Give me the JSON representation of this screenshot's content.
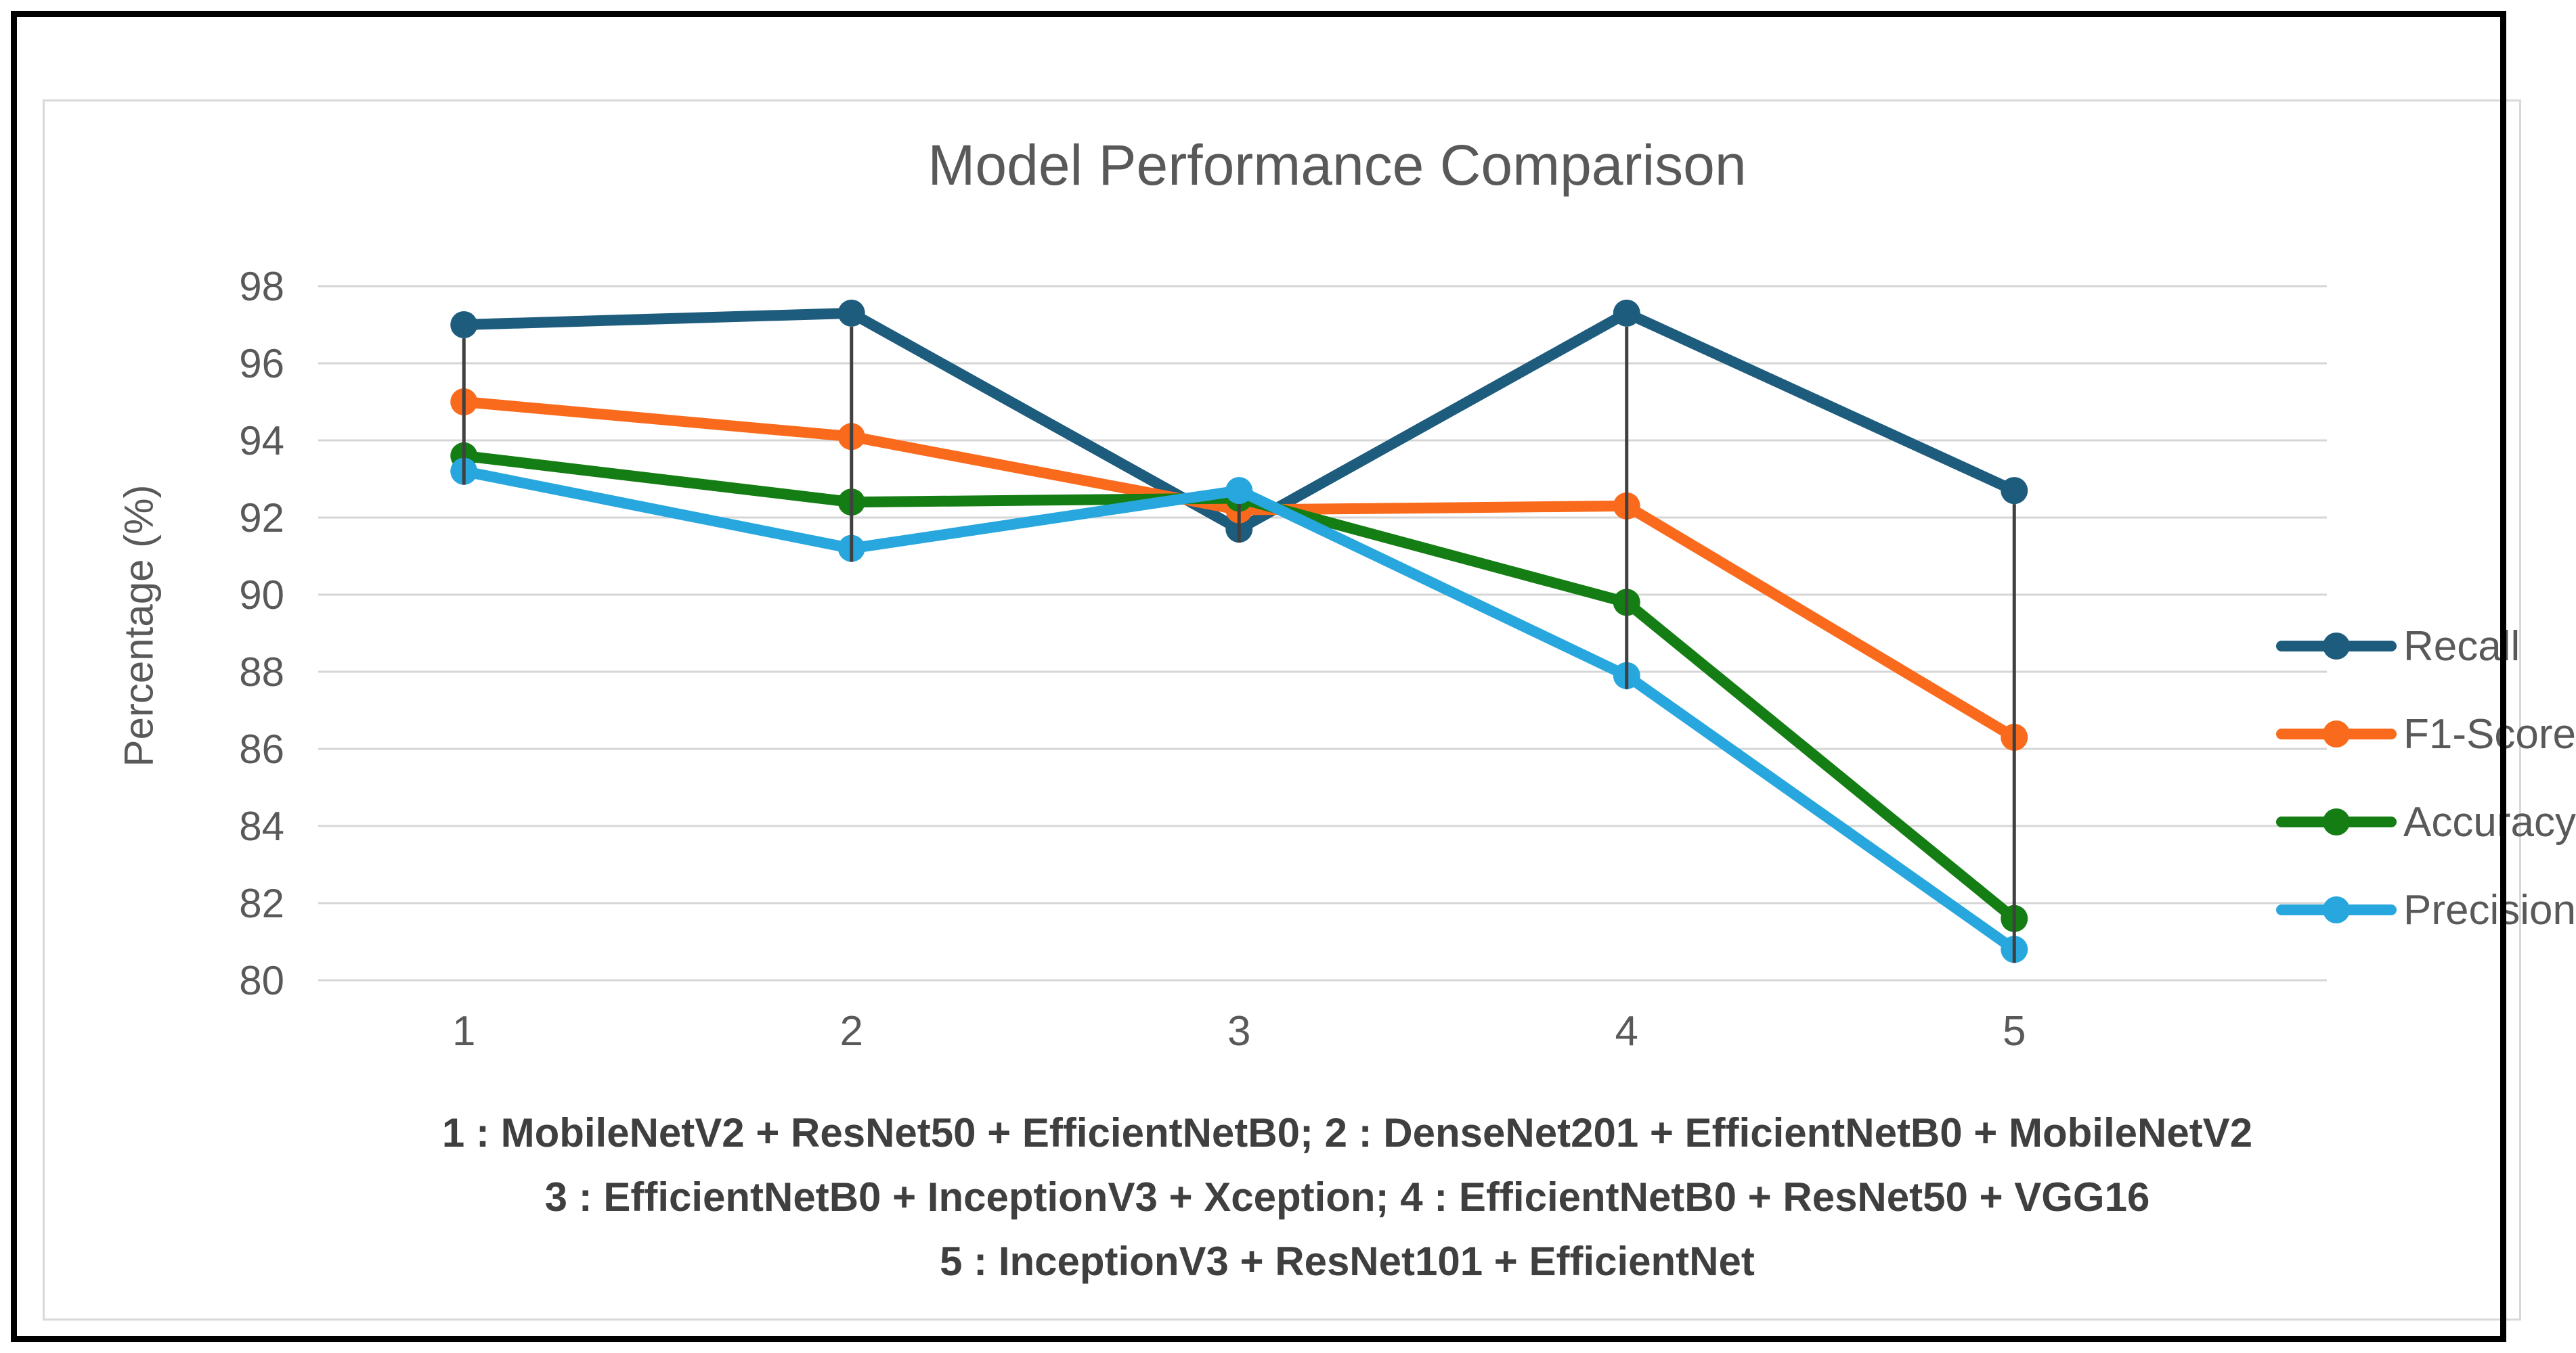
{
  "figure": {
    "title": "Model Performance Comparison",
    "y_axis_title": "Percentage (%)",
    "footnote_lines": [
      "1 : MobileNetV2 + ResNet50 + EfficientNetB0;  2 : DenseNet201 + EfficientNetB0 + MobileNetV2",
      "3 : EfficientNetB0 + InceptionV3 + Xception;  4 : EfficientNetB0 + ResNet50 + VGG16",
      "5 : InceptionV3 + ResNet101 + EfficientNet"
    ]
  },
  "chart_data": {
    "type": "line",
    "title": "Model Performance Comparison",
    "xlabel": "",
    "ylabel": "Percentage (%)",
    "categories": [
      "1",
      "2",
      "3",
      "4",
      "5"
    ],
    "series": [
      {
        "name": "Recall",
        "color": "#1E5C7D",
        "values": [
          97.0,
          97.3,
          91.7,
          97.3,
          92.7
        ]
      },
      {
        "name": "F1-Score",
        "color": "#FA6A1C",
        "values": [
          95.0,
          94.1,
          92.2,
          92.3,
          86.3
        ]
      },
      {
        "name": "Accuracy",
        "color": "#147D14",
        "values": [
          93.6,
          92.4,
          92.5,
          89.8,
          81.6
        ]
      },
      {
        "name": "Precision",
        "color": "#27A7DE",
        "values": [
          93.2,
          91.2,
          92.7,
          87.9,
          80.8
        ]
      }
    ],
    "ylim": [
      80,
      98
    ],
    "ytick_step": 2,
    "yticks": [
      98,
      96,
      94,
      92,
      90,
      88,
      86,
      84,
      82,
      80
    ],
    "grid": true,
    "grid_color": "#D6D6D6",
    "high_low_lines": true,
    "high_low_line_color": "#404040",
    "axis_text_color": "#595959",
    "legend_position": "right",
    "annotations": [
      "1 : MobileNetV2 + ResNet50 + EfficientNetB0;  2 : DenseNet201 + EfficientNetB0 + MobileNetV2",
      "3 : EfficientNetB0 + InceptionV3 + Xception;  4 : EfficientNetB0 + ResNet50 + VGG16",
      "5 : InceptionV3 + ResNet101 + EfficientNet"
    ]
  },
  "legend": {
    "items": [
      {
        "label": "Recall"
      },
      {
        "label": "F1-Score"
      },
      {
        "label": "Accuracy"
      },
      {
        "label": "Precision"
      }
    ]
  }
}
